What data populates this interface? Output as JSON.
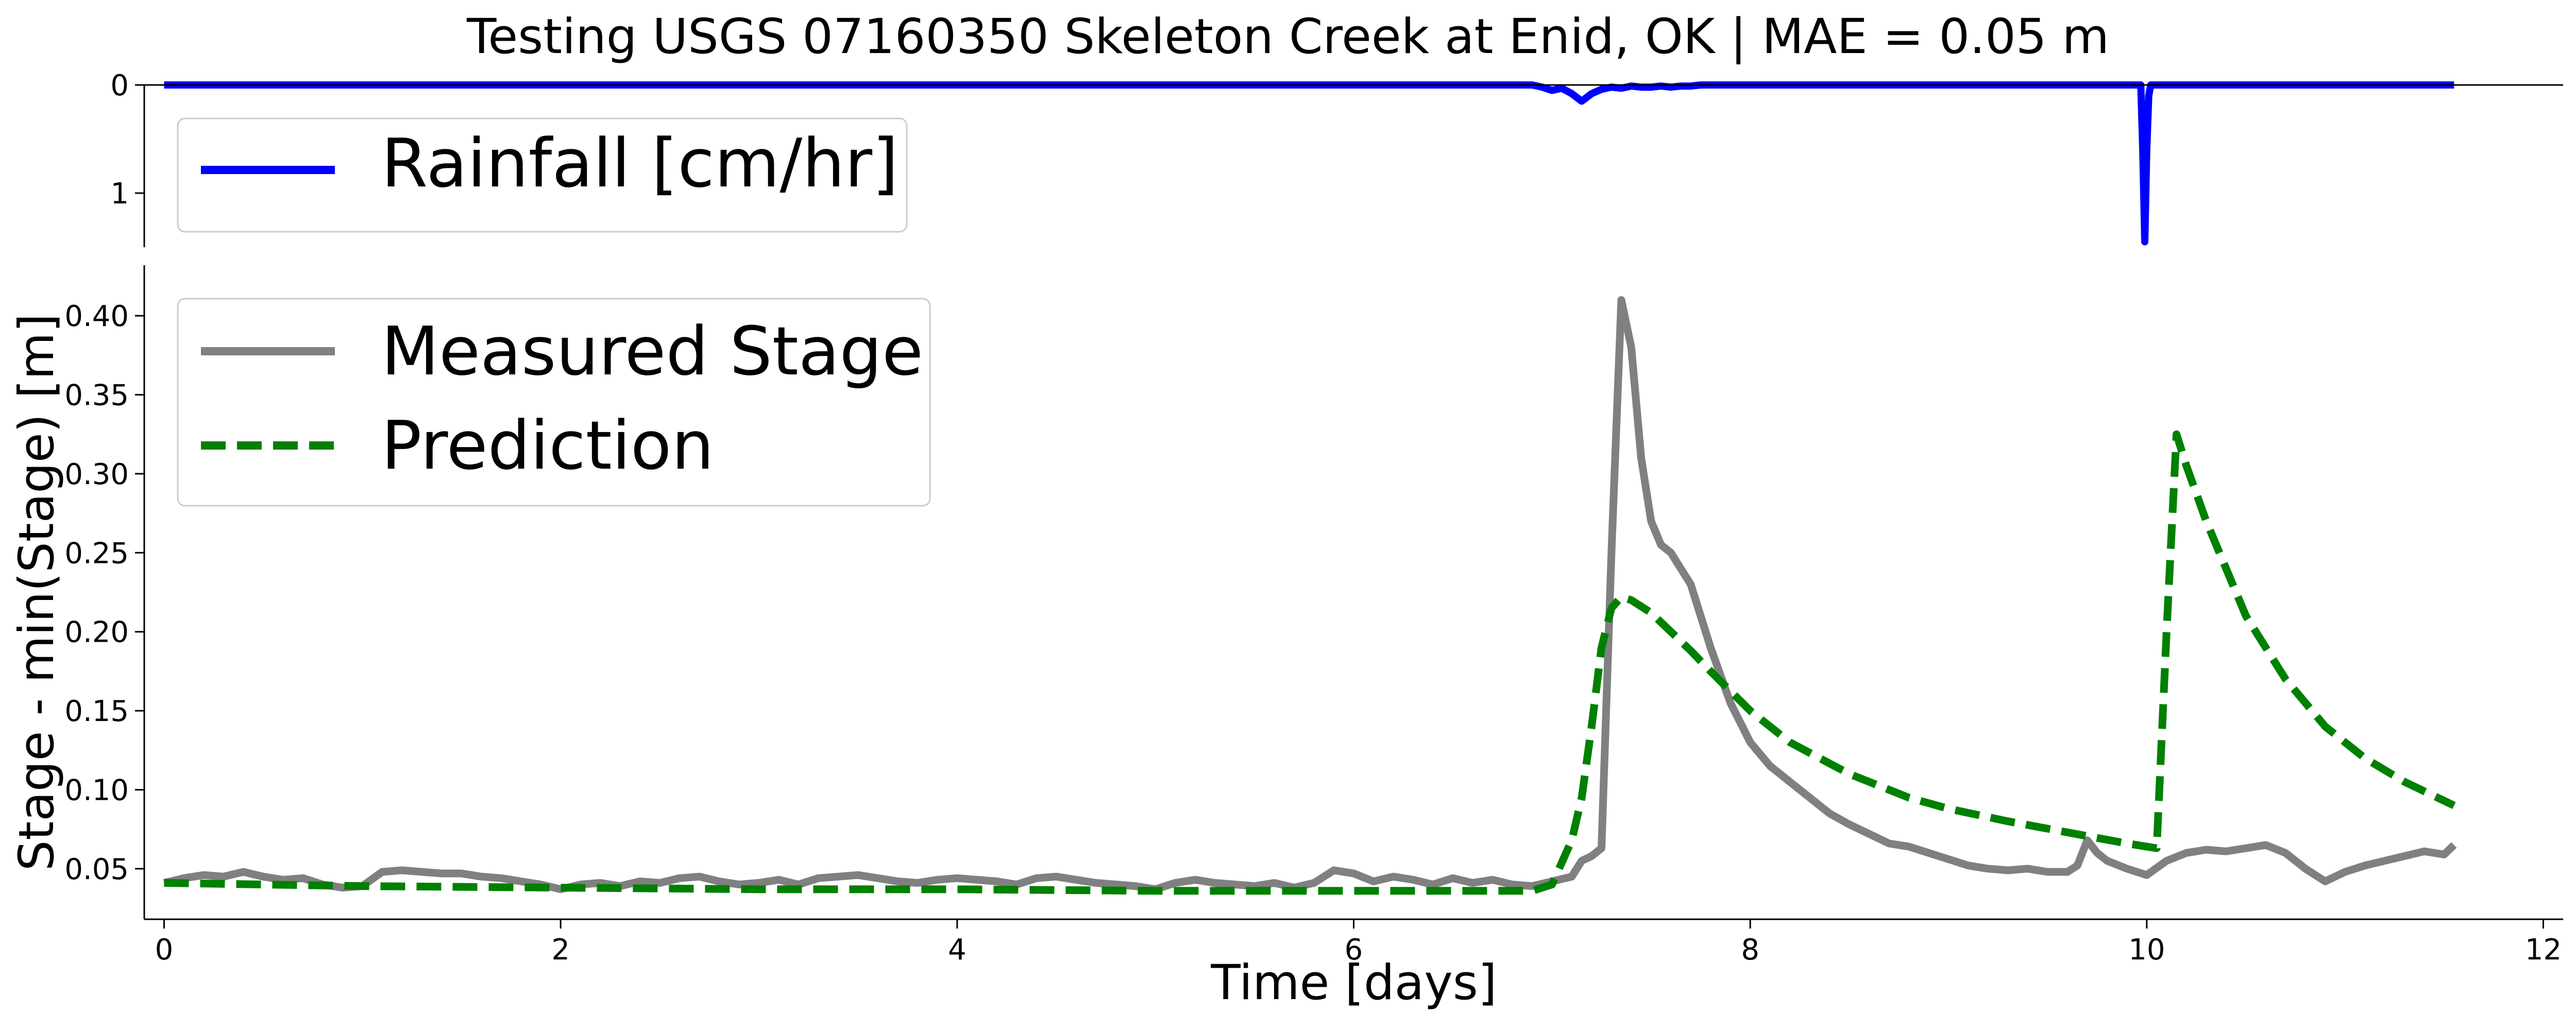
{
  "chart_data": [
    {
      "type": "line",
      "panel": "rainfall",
      "title": "Testing USGS 07160350 Skeleton Creek at Enid, OK | MAE = 0.05 m",
      "ylim": [
        1.5,
        0
      ],
      "y_inverted": true,
      "yticks": [
        0,
        1
      ],
      "xlim": [
        -0.1,
        12.1
      ],
      "grid": false,
      "legend_placement": "upper-left",
      "series": [
        {
          "name": "Rainfall [cm/hr]",
          "color": "#0000ff",
          "style": "solid",
          "x": [
            0,
            6.9,
            6.95,
            7.0,
            7.05,
            7.1,
            7.15,
            7.2,
            7.25,
            7.3,
            7.35,
            7.4,
            7.45,
            7.5,
            7.55,
            7.6,
            7.65,
            7.7,
            7.75,
            9.97,
            9.98,
            9.99,
            10.0,
            10.01,
            10.02,
            11.55
          ],
          "y": [
            0,
            0,
            0.02,
            0.05,
            0.03,
            0.08,
            0.15,
            0.08,
            0.04,
            0.02,
            0.03,
            0.01,
            0.02,
            0.02,
            0.01,
            0.02,
            0.01,
            0.01,
            0,
            0,
            0.6,
            1.45,
            0.6,
            0.1,
            0,
            0
          ]
        }
      ]
    },
    {
      "type": "line",
      "panel": "stage",
      "xlabel": "Time [days]",
      "ylabel": "Stage - min(Stage) [m]",
      "xlim": [
        -0.1,
        12.1
      ],
      "ylim": [
        0.018,
        0.432
      ],
      "xticks": [
        0,
        2,
        4,
        6,
        8,
        10,
        12
      ],
      "yticks": [
        0.05,
        0.1,
        0.15,
        0.2,
        0.25,
        0.3,
        0.35,
        0.4
      ],
      "ytick_labels": [
        "0.05",
        "0.10",
        "0.15",
        "0.20",
        "0.25",
        "0.30",
        "0.35",
        "0.40"
      ],
      "grid": false,
      "legend_placement": "upper-left",
      "series": [
        {
          "name": "Measured Stage",
          "color": "#808080",
          "style": "solid",
          "x": [
            0,
            0.1,
            0.2,
            0.3,
            0.4,
            0.5,
            0.6,
            0.7,
            0.8,
            0.9,
            1.0,
            1.1,
            1.2,
            1.3,
            1.4,
            1.5,
            1.6,
            1.7,
            1.8,
            1.9,
            2.0,
            2.1,
            2.2,
            2.3,
            2.4,
            2.5,
            2.6,
            2.7,
            2.8,
            2.9,
            3.0,
            3.1,
            3.2,
            3.3,
            3.4,
            3.5,
            3.6,
            3.7,
            3.8,
            3.9,
            4.0,
            4.1,
            4.2,
            4.3,
            4.4,
            4.5,
            4.6,
            4.7,
            4.8,
            4.9,
            5.0,
            5.1,
            5.2,
            5.3,
            5.4,
            5.5,
            5.6,
            5.7,
            5.8,
            5.9,
            6.0,
            6.1,
            6.2,
            6.3,
            6.4,
            6.5,
            6.6,
            6.7,
            6.8,
            6.9,
            7.0,
            7.1,
            7.15,
            7.2,
            7.25,
            7.3,
            7.35,
            7.4,
            7.45,
            7.5,
            7.55,
            7.6,
            7.7,
            7.8,
            7.9,
            8.0,
            8.1,
            8.2,
            8.3,
            8.4,
            8.5,
            8.6,
            8.7,
            8.8,
            8.9,
            9.0,
            9.1,
            9.2,
            9.3,
            9.4,
            9.5,
            9.6,
            9.65,
            9.7,
            9.75,
            9.8,
            9.9,
            10.0,
            10.1,
            10.2,
            10.3,
            10.4,
            10.5,
            10.6,
            10.7,
            10.8,
            10.9,
            11.0,
            11.1,
            11.2,
            11.3,
            11.4,
            11.5,
            11.55
          ],
          "y": [
            0.041,
            0.044,
            0.046,
            0.045,
            0.048,
            0.045,
            0.043,
            0.044,
            0.04,
            0.038,
            0.039,
            0.048,
            0.049,
            0.048,
            0.047,
            0.047,
            0.045,
            0.044,
            0.042,
            0.04,
            0.037,
            0.04,
            0.041,
            0.039,
            0.042,
            0.041,
            0.044,
            0.045,
            0.042,
            0.04,
            0.041,
            0.043,
            0.04,
            0.044,
            0.045,
            0.046,
            0.044,
            0.042,
            0.041,
            0.043,
            0.044,
            0.043,
            0.042,
            0.04,
            0.044,
            0.045,
            0.043,
            0.041,
            0.04,
            0.039,
            0.037,
            0.041,
            0.043,
            0.041,
            0.04,
            0.039,
            0.041,
            0.038,
            0.041,
            0.049,
            0.047,
            0.042,
            0.045,
            0.043,
            0.04,
            0.044,
            0.041,
            0.043,
            0.04,
            0.039,
            0.042,
            0.045,
            0.055,
            0.058,
            0.063,
            0.25,
            0.41,
            0.38,
            0.31,
            0.27,
            0.255,
            0.25,
            0.23,
            0.19,
            0.155,
            0.13,
            0.115,
            0.105,
            0.095,
            0.085,
            0.078,
            0.072,
            0.066,
            0.064,
            0.06,
            0.056,
            0.052,
            0.05,
            0.049,
            0.05,
            0.048,
            0.048,
            0.052,
            0.068,
            0.06,
            0.055,
            0.05,
            0.046,
            0.055,
            0.06,
            0.062,
            0.061,
            0.063,
            0.065,
            0.06,
            0.05,
            0.042,
            0.048,
            0.052,
            0.055,
            0.058,
            0.061,
            0.059,
            0.065
          ]
        },
        {
          "name": "Prediction",
          "color": "#008000",
          "style": "dashed",
          "x": [
            0,
            1,
            2,
            3,
            4,
            5,
            6,
            6.9,
            7.0,
            7.1,
            7.15,
            7.2,
            7.25,
            7.3,
            7.35,
            7.4,
            7.5,
            7.6,
            7.7,
            7.8,
            8.0,
            8.2,
            8.5,
            8.8,
            9.0,
            9.3,
            9.6,
            9.9,
            10.05,
            10.1,
            10.15,
            10.2,
            10.3,
            10.5,
            10.7,
            10.9,
            11.1,
            11.3,
            11.55
          ],
          "y": [
            0.041,
            0.039,
            0.038,
            0.037,
            0.037,
            0.036,
            0.036,
            0.036,
            0.04,
            0.068,
            0.095,
            0.14,
            0.19,
            0.215,
            0.222,
            0.22,
            0.212,
            0.2,
            0.188,
            0.175,
            0.15,
            0.13,
            0.11,
            0.095,
            0.088,
            0.08,
            0.073,
            0.066,
            0.063,
            0.2,
            0.325,
            0.305,
            0.27,
            0.21,
            0.17,
            0.14,
            0.12,
            0.105,
            0.09
          ]
        }
      ]
    }
  ]
}
